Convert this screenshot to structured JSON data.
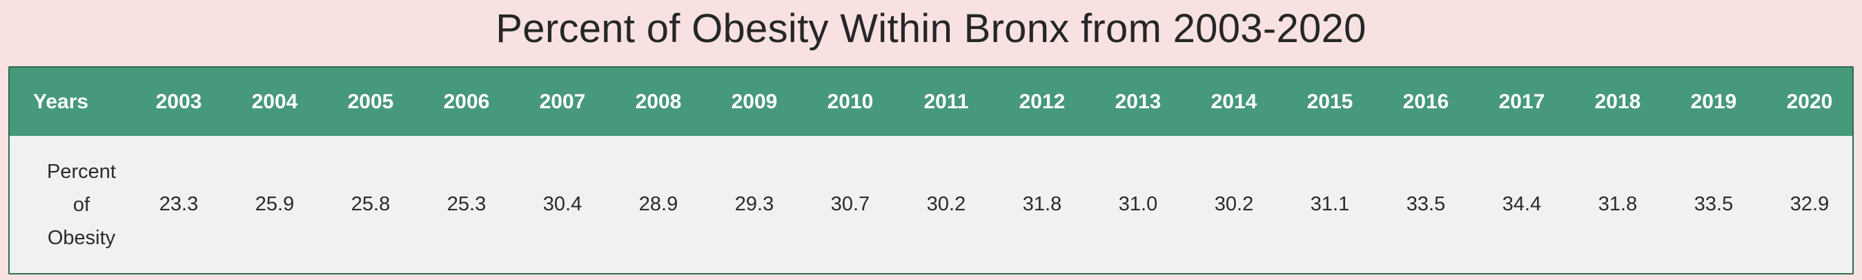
{
  "title": "Percent of Obesity Within Bronx from 2003-2020",
  "table": {
    "header_label": "Years",
    "row_label": "Percent of Obesity"
  },
  "colors": {
    "background": "#f7e1e1",
    "header_background": "#46997a",
    "header_text": "#ffffff",
    "body_background": "#f1f1f1",
    "border": "#2f6b50"
  },
  "chart_data": {
    "type": "table",
    "title": "Percent of Obesity Within Bronx from 2003-2020",
    "columns": [
      "Years",
      "2003",
      "2004",
      "2005",
      "2006",
      "2007",
      "2008",
      "2009",
      "2010",
      "2011",
      "2012",
      "2013",
      "2014",
      "2015",
      "2016",
      "2017",
      "2018",
      "2019",
      "2020"
    ],
    "categories": [
      "2003",
      "2004",
      "2005",
      "2006",
      "2007",
      "2008",
      "2009",
      "2010",
      "2011",
      "2012",
      "2013",
      "2014",
      "2015",
      "2016",
      "2017",
      "2018",
      "2019",
      "2020"
    ],
    "rows": [
      {
        "label": "Percent of Obesity",
        "values": [
          "23.3",
          "25.9",
          "25.8",
          "25.3",
          "30.4",
          "28.9",
          "29.3",
          "30.7",
          "30.2",
          "31.8",
          "31.0",
          "30.2",
          "31.1",
          "33.5",
          "34.4",
          "31.8",
          "33.5",
          "32.9"
        ]
      }
    ]
  }
}
